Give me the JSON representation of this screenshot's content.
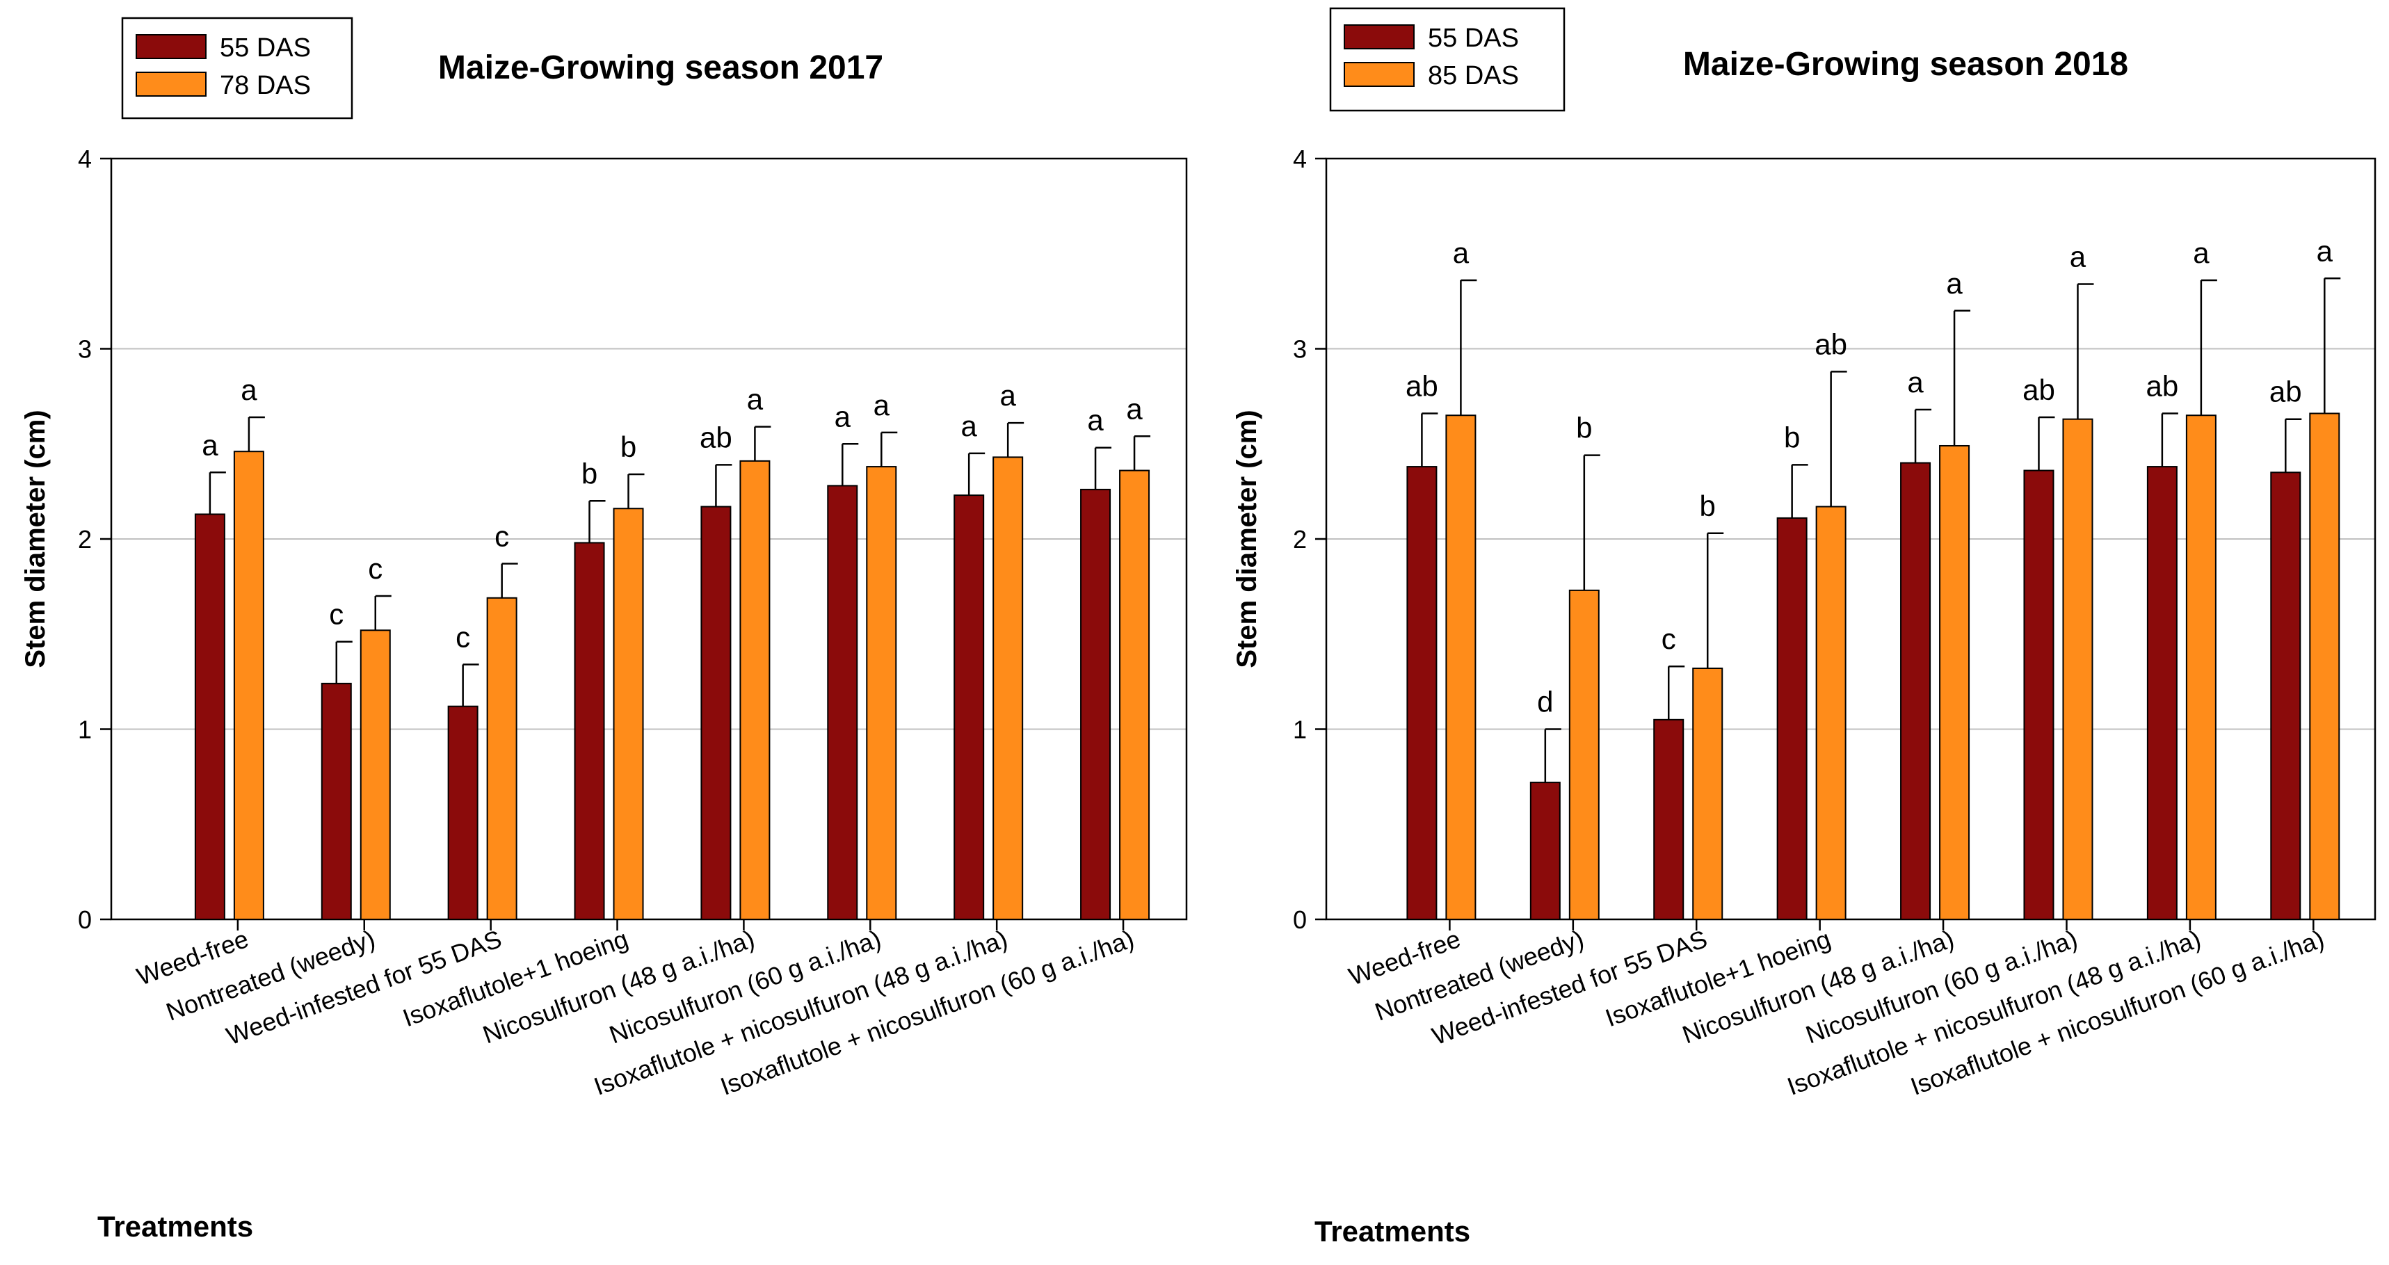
{
  "colors": {
    "series1": "#8b0b0b",
    "series2": "#ff8c1a",
    "grid": "#c0c0c0",
    "axis": "#000000"
  },
  "chart_data": [
    {
      "type": "bar",
      "title": "Maize-Growing season 2017",
      "xlabel": "Treatments",
      "ylabel": "Stem diameter (cm)",
      "ylim": [
        0,
        4
      ],
      "yticks": [
        "0",
        "1",
        "2",
        "3",
        "4"
      ],
      "grid": true,
      "legend_position": "top-left",
      "categories": [
        "Weed-free",
        "Nontreated (weedy)",
        "Weed-infested for 55 DAS",
        "Isoxaflutole+1 hoeing",
        "Nicosulfuron (48 g a.i./ha)",
        "Nicosulfuron (60 g a.i./ha)",
        "Isoxaflutole + nicosulfuron (48 g a.i./ha)",
        "Isoxaflutole + nicosulfuron (60 g a.i./ha)"
      ],
      "series": [
        {
          "name": "55 DAS",
          "values": [
            2.13,
            1.24,
            1.12,
            1.98,
            2.17,
            2.28,
            2.23,
            2.26
          ],
          "errors": [
            0.22,
            0.22,
            0.22,
            0.22,
            0.22,
            0.22,
            0.22,
            0.22
          ],
          "letters": [
            "a",
            "c",
            "c",
            "b",
            "ab",
            "a",
            "a",
            "a"
          ]
        },
        {
          "name": "78 DAS",
          "values": [
            2.46,
            1.52,
            1.69,
            2.16,
            2.41,
            2.38,
            2.43,
            2.36
          ],
          "errors": [
            0.18,
            0.18,
            0.18,
            0.18,
            0.18,
            0.18,
            0.18,
            0.18
          ],
          "letters": [
            "a",
            "c",
            "c",
            "b",
            "a",
            "a",
            "a",
            "a"
          ]
        }
      ]
    },
    {
      "type": "bar",
      "title": "Maize-Growing season 2018",
      "xlabel": "Treatments",
      "ylabel": "Stem diameter (cm)",
      "ylim": [
        0,
        4
      ],
      "yticks": [
        "0",
        "1",
        "2",
        "3",
        "4"
      ],
      "grid": true,
      "legend_position": "top-left",
      "categories": [
        "Weed-free",
        "Nontreated (weedy)",
        "Weed-infested for 55 DAS",
        "Isoxaflutole+1 hoeing",
        "Nicosulfuron (48 g a.i./ha)",
        "Nicosulfuron (60 g a.i./ha)",
        "Isoxaflutole + nicosulfuron (48 g a.i./ha)",
        "Isoxaflutole + nicosulfuron (60 g a.i./ha)"
      ],
      "series": [
        {
          "name": "55 DAS",
          "values": [
            2.38,
            0.72,
            1.05,
            2.11,
            2.4,
            2.36,
            2.38,
            2.35
          ],
          "errors": [
            0.28,
            0.28,
            0.28,
            0.28,
            0.28,
            0.28,
            0.28,
            0.28
          ],
          "letters": [
            "ab",
            "d",
            "c",
            "b",
            "a",
            "ab",
            "ab",
            "ab"
          ]
        },
        {
          "name": "85 DAS",
          "values": [
            2.65,
            1.73,
            1.32,
            2.17,
            2.49,
            2.63,
            2.65,
            2.66
          ],
          "errors": [
            0.71,
            0.71,
            0.71,
            0.71,
            0.71,
            0.71,
            0.71,
            0.71
          ],
          "letters": [
            "a",
            "b",
            "b",
            "ab",
            "a",
            "a",
            "a",
            "a"
          ]
        }
      ]
    }
  ]
}
